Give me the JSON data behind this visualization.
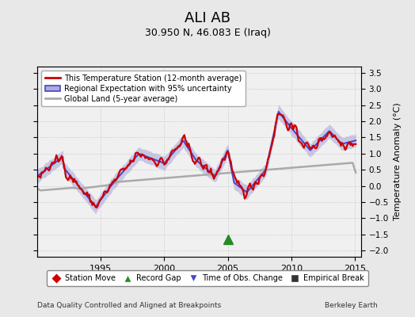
{
  "title": "ALI AB",
  "subtitle": "30.950 N, 46.083 E (Iraq)",
  "ylabel": "Temperature Anomaly (°C)",
  "footer_left": "Data Quality Controlled and Aligned at Breakpoints",
  "footer_right": "Berkeley Earth",
  "xlim": [
    1990.0,
    2015.5
  ],
  "ylim": [
    -2.2,
    3.7
  ],
  "yticks": [
    -2,
    -1.5,
    -1,
    -0.5,
    0,
    0.5,
    1,
    1.5,
    2,
    2.5,
    3,
    3.5
  ],
  "xticks": [
    1995,
    2000,
    2005,
    2010,
    2015
  ],
  "bg_color": "#e8e8e8",
  "plot_bg_color": "#f0f0f0",
  "record_gap_x": 2005.0,
  "record_gap_y": -1.65,
  "station_color": "#cc0000",
  "regional_color": "#4444cc",
  "regional_band_color": "#aaaadd",
  "global_color": "#aaaaaa",
  "marker_colors": {
    "station_move": "#cc0000",
    "record_gap": "#228B22",
    "time_obs": "#4444cc",
    "empirical": "#333333"
  }
}
